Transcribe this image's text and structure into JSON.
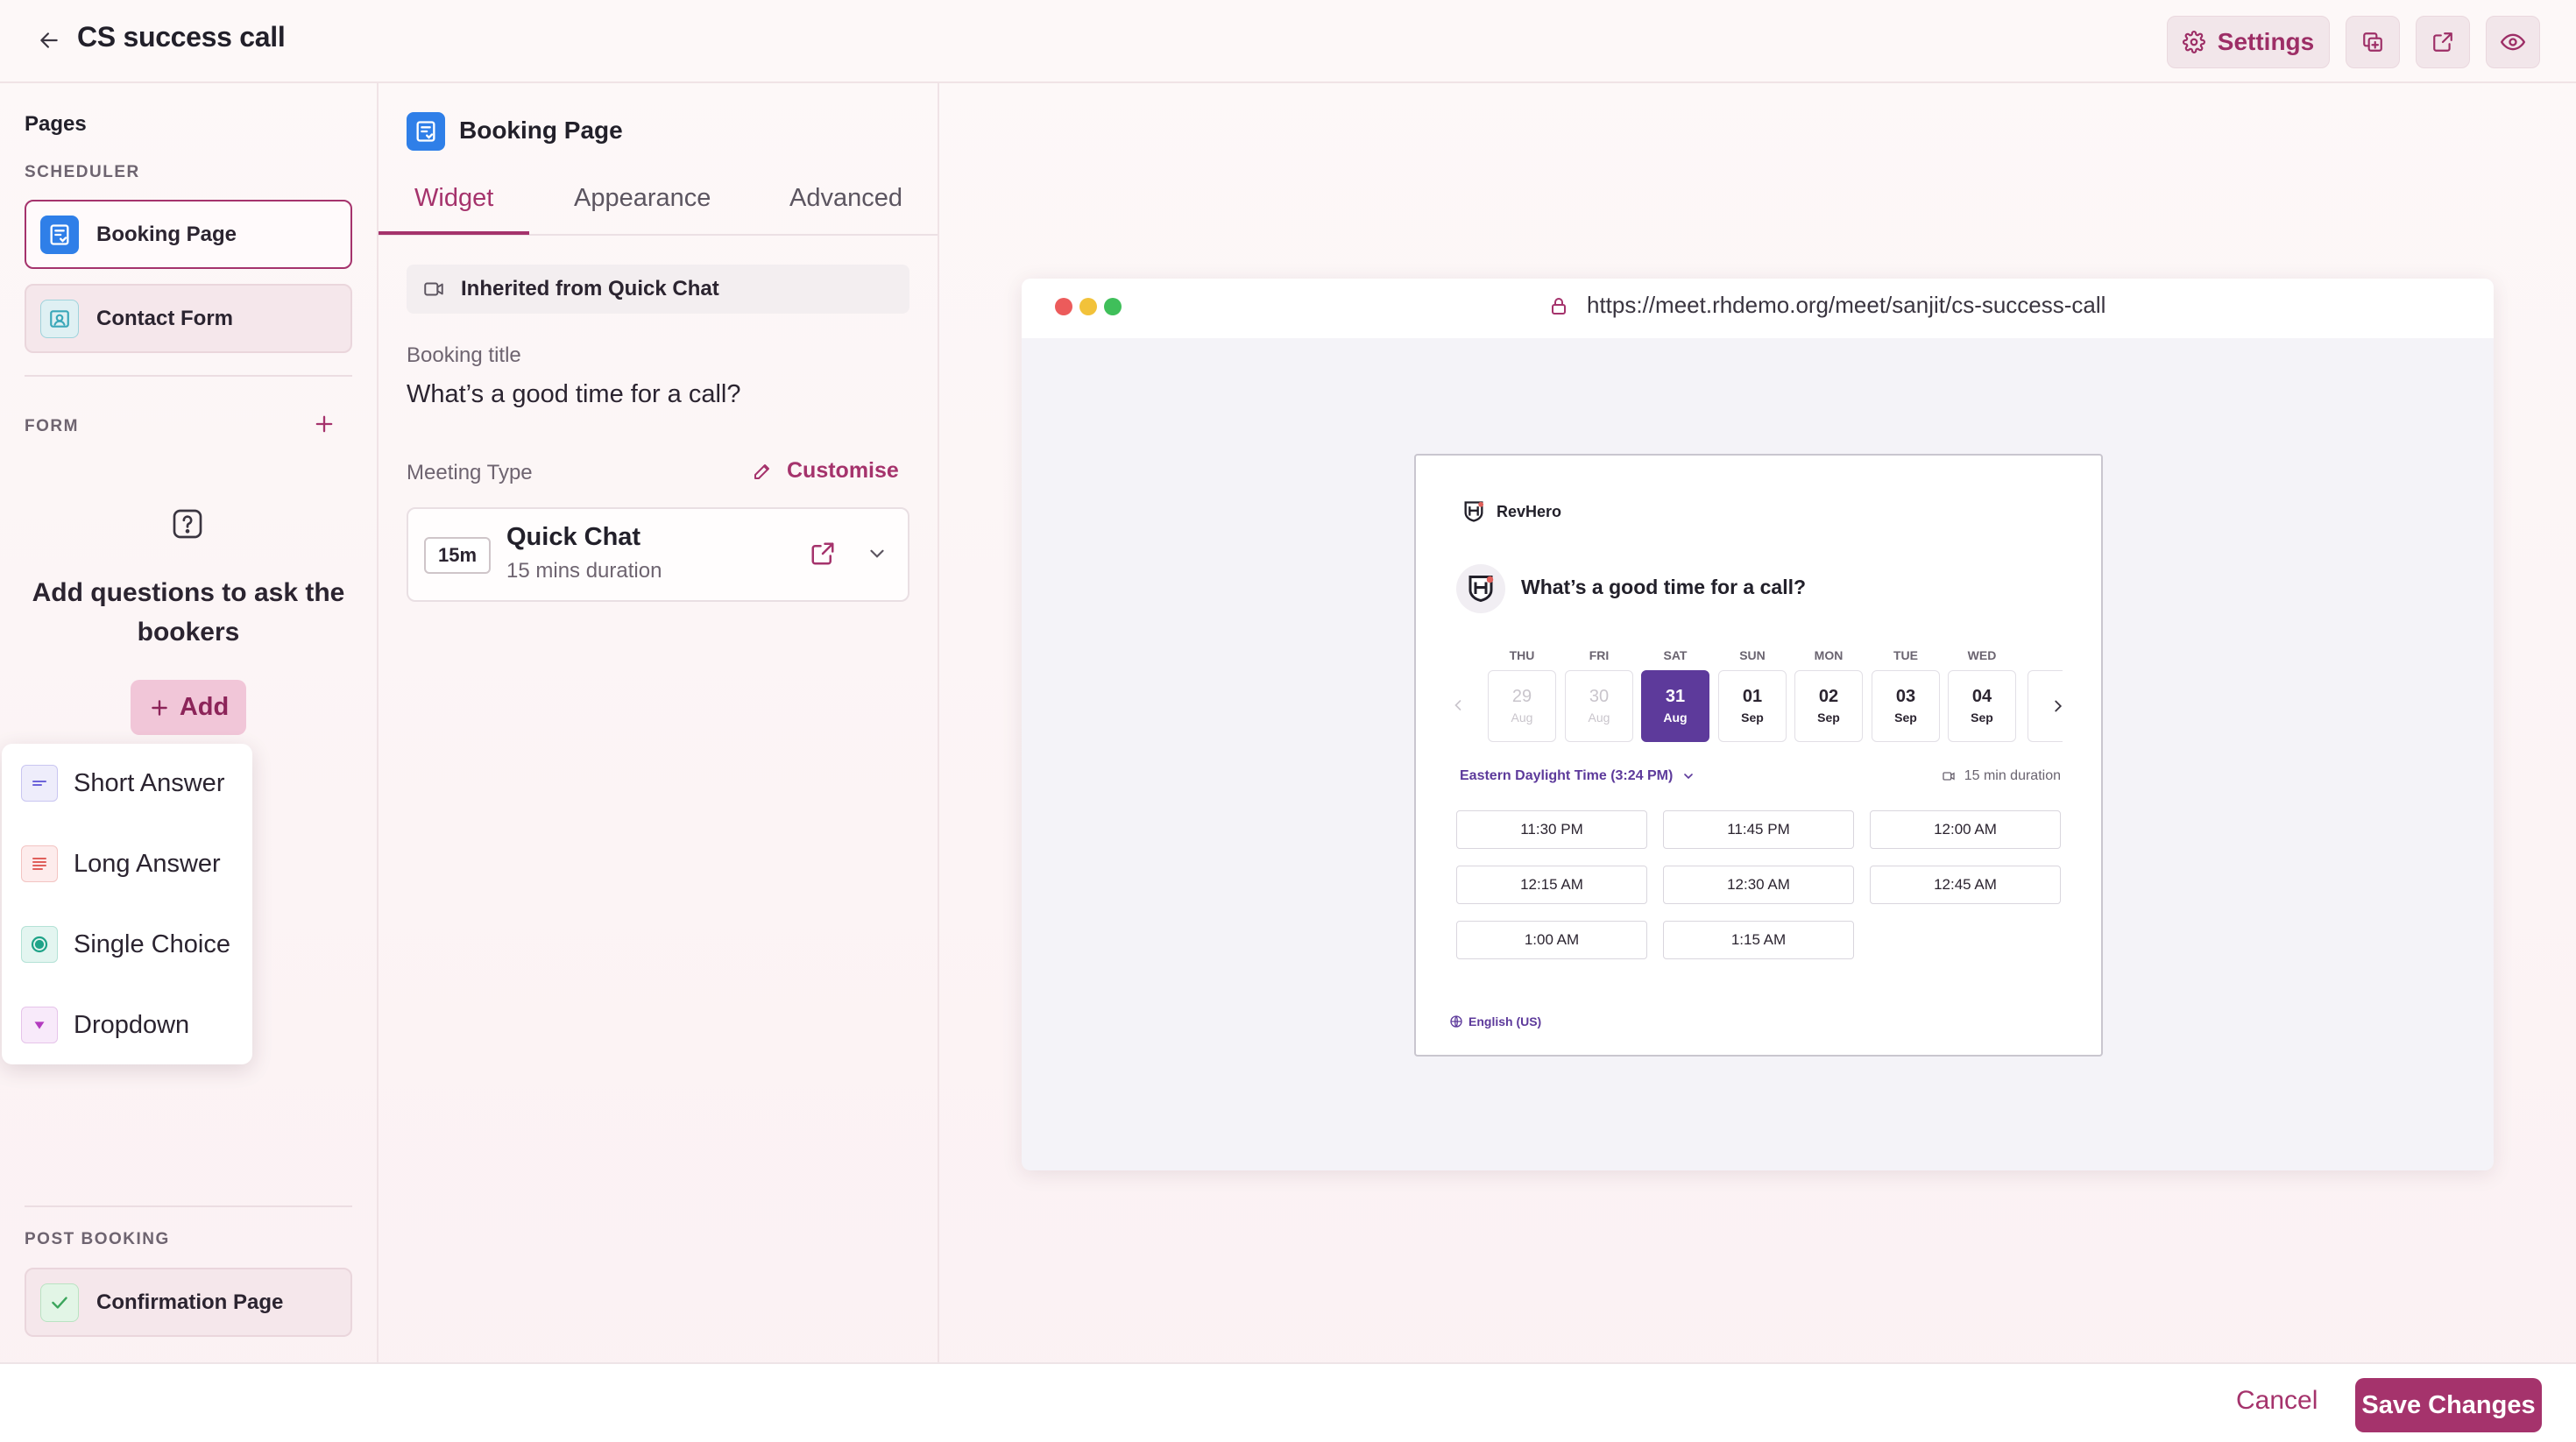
{
  "header": {
    "title": "CS success call",
    "settings_label": "Settings"
  },
  "sidebar": {
    "pages_heading": "Pages",
    "scheduler_caption": "SCHEDULER",
    "scheduler_items": [
      {
        "label": "Booking Page",
        "icon": "booking-page-icon",
        "active": true
      },
      {
        "label": "Contact Form",
        "icon": "contact-form-icon",
        "active": false
      }
    ],
    "form_caption": "FORM",
    "empty_state_title": "Add questions to ask the bookers",
    "add_label": "Add",
    "question_types": [
      {
        "label": "Short Answer",
        "icon": "short-answer-icon",
        "color": "#6c63d9"
      },
      {
        "label": "Long Answer",
        "icon": "long-answer-icon",
        "color": "#e0605b"
      },
      {
        "label": "Single Choice",
        "icon": "single-choice-icon",
        "color": "#1fa388"
      },
      {
        "label": "Dropdown",
        "icon": "dropdown-icon",
        "color": "#b33bbf"
      }
    ],
    "post_booking_caption": "POST BOOKING",
    "post_booking_items": [
      {
        "label": "Confirmation Page",
        "icon": "check-icon"
      }
    ]
  },
  "panel": {
    "title": "Booking Page",
    "tabs": [
      {
        "label": "Widget",
        "active": true
      },
      {
        "label": "Appearance",
        "active": false
      },
      {
        "label": "Advanced",
        "active": false
      }
    ],
    "inherited_label": "Inherited from Quick Chat",
    "booking_title_label": "Booking title",
    "booking_title_value": "What’s a good time for a call?",
    "meeting_type_label": "Meeting Type",
    "customise_label": "Customise",
    "meeting": {
      "badge": "15m",
      "name": "Quick Chat",
      "duration": "15 mins duration"
    }
  },
  "preview": {
    "url": "https://meet.rhdemo.org/meet/sanjit/cs-success-call",
    "brand": "RevHero",
    "title": "What’s a good time for a call?",
    "days": [
      {
        "dow": "THU",
        "num": "29",
        "mon": "Aug",
        "state": "disabled"
      },
      {
        "dow": "FRI",
        "num": "30",
        "mon": "Aug",
        "state": "disabled"
      },
      {
        "dow": "SAT",
        "num": "31",
        "mon": "Aug",
        "state": "selected"
      },
      {
        "dow": "SUN",
        "num": "01",
        "mon": "Sep",
        "state": "available"
      },
      {
        "dow": "MON",
        "num": "02",
        "mon": "Sep",
        "state": "available"
      },
      {
        "dow": "TUE",
        "num": "03",
        "mon": "Sep",
        "state": "available"
      },
      {
        "dow": "WED",
        "num": "04",
        "mon": "Sep",
        "state": "available"
      }
    ],
    "timezone": "Eastern Daylight Time (3:24 PM)",
    "duration": "15 min duration",
    "slots": [
      "11:30 PM",
      "11:45 PM",
      "12:00 AM",
      "12:15 AM",
      "12:30 AM",
      "12:45 AM",
      "1:00 AM",
      "1:15 AM"
    ],
    "language": "English (US)",
    "accent_color": "#5d3a9b"
  },
  "footer": {
    "cancel_label": "Cancel",
    "save_label": "Save Changes"
  },
  "colors": {
    "brand": "#a5336c",
    "background": "#fdf8f8"
  }
}
